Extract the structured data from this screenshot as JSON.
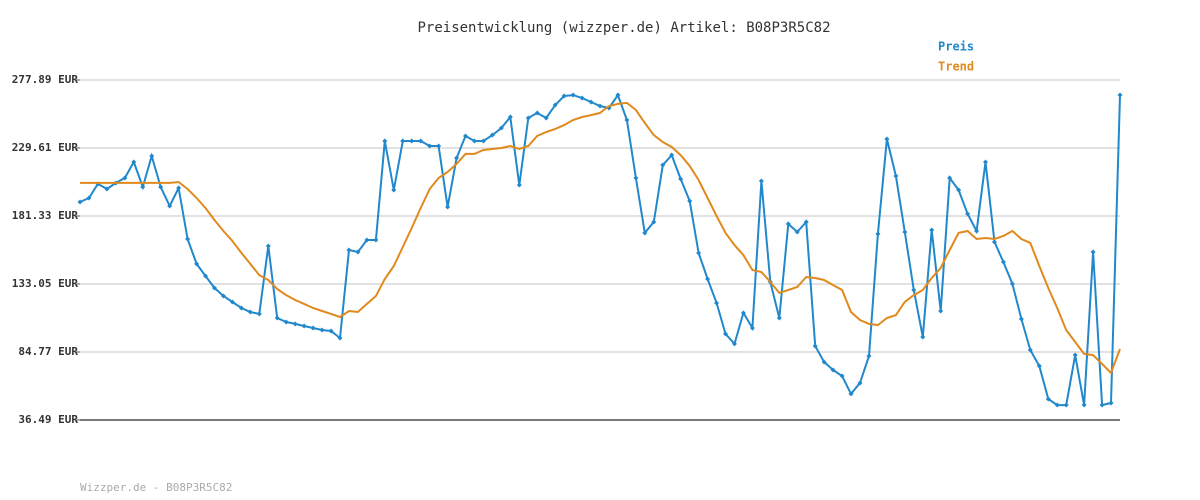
{
  "chart_data": {
    "type": "line",
    "title": "Preisentwicklung (wizzper.de) Artikel: B08P3R5C82",
    "footer": "Wizzper.de - B08P3R5C82",
    "ylim": [
      36.49,
      277.89
    ],
    "yticks": [
      {
        "value": 36.49,
        "label": "36.49 EUR"
      },
      {
        "value": 84.77,
        "label": "84.77 EUR"
      },
      {
        "value": 133.05,
        "label": "133.05 EUR"
      },
      {
        "value": 181.33,
        "label": "181.33 EUR"
      },
      {
        "value": 229.61,
        "label": "229.61 EUR"
      },
      {
        "value": 277.89,
        "label": "277.89 EUR"
      }
    ],
    "grid": true,
    "legend": "top-right",
    "series": [
      {
        "name": "Preis",
        "color": "#2288cc",
        "markers": true,
        "values": [
          191.3,
          194.1,
          204.1,
          200.5,
          204.8,
          208.3,
          219.7,
          201.9,
          223.9,
          201.9,
          188.4,
          201.2,
          165.0,
          147.3,
          138.7,
          130.2,
          124.5,
          120.3,
          116.0,
          113.2,
          111.8,
          160.0,
          108.9,
          106.1,
          104.7,
          103.2,
          101.8,
          100.4,
          99.7,
          94.7,
          157.2,
          155.8,
          164.3,
          164.3,
          234.6,
          199.8,
          234.6,
          234.6,
          234.6,
          231.0,
          231.0,
          187.7,
          222.5,
          238.1,
          234.6,
          234.6,
          238.8,
          243.8,
          251.6,
          203.3,
          250.9,
          254.5,
          250.9,
          260.1,
          266.5,
          267.2,
          265.1,
          262.3,
          259.4,
          258.0,
          267.2,
          249.5,
          208.3,
          169.3,
          177.1,
          217.5,
          224.6,
          207.6,
          192.0,
          155.1,
          136.6,
          119.6,
          97.6,
          90.5,
          112.5,
          101.8,
          206.2,
          134.5,
          108.9,
          175.7,
          170.0,
          177.1,
          89.0,
          77.7,
          72.0,
          67.7,
          55.0,
          62.8,
          81.9,
          168.6,
          236.0,
          209.7,
          170.0,
          128.8,
          95.4,
          171.4,
          113.9,
          208.3,
          199.8,
          182.8,
          170.7,
          219.7,
          162.9,
          148.7,
          133.1,
          108.2,
          86.2,
          74.8,
          51.4,
          47.1,
          47.1,
          82.6,
          47.1,
          155.8,
          47.1,
          48.6,
          267.2
        ]
      },
      {
        "name": "Trend",
        "color": "#e08a1e",
        "markers": false,
        "values": [
          204.8,
          204.8,
          204.8,
          204.8,
          204.8,
          204.8,
          204.8,
          204.8,
          204.8,
          204.8,
          204.8,
          205.5,
          200.5,
          194.1,
          187.0,
          178.5,
          170.7,
          163.6,
          155.1,
          147.3,
          139.4,
          135.9,
          129.5,
          125.2,
          121.7,
          118.9,
          116.0,
          113.9,
          111.8,
          109.6,
          113.9,
          113.2,
          118.9,
          124.5,
          136.6,
          145.8,
          159.3,
          172.8,
          187.0,
          200.5,
          208.3,
          212.6,
          218.3,
          225.4,
          225.4,
          228.2,
          228.9,
          229.6,
          231.0,
          228.9,
          231.0,
          238.1,
          241.0,
          243.1,
          245.9,
          249.5,
          251.6,
          253.0,
          254.5,
          259.4,
          260.9,
          261.6,
          256.6,
          247.4,
          238.8,
          233.9,
          230.3,
          224.6,
          216.8,
          206.9,
          194.1,
          181.3,
          169.3,
          160.7,
          153.6,
          143.0,
          141.6,
          134.5,
          126.7,
          128.8,
          130.9,
          138.0,
          137.3,
          135.9,
          132.3,
          128.8,
          113.2,
          107.5,
          104.7,
          103.9,
          108.9,
          111.0,
          120.3,
          125.2,
          128.8,
          137.3,
          144.4,
          157.2,
          169.3,
          170.7,
          165.0,
          165.7,
          165.0,
          167.1,
          170.7,
          165.0,
          162.2,
          145.8,
          130.2,
          116.0,
          100.4,
          91.9,
          83.4,
          82.6,
          76.3,
          69.9,
          86.9
        ]
      }
    ]
  }
}
